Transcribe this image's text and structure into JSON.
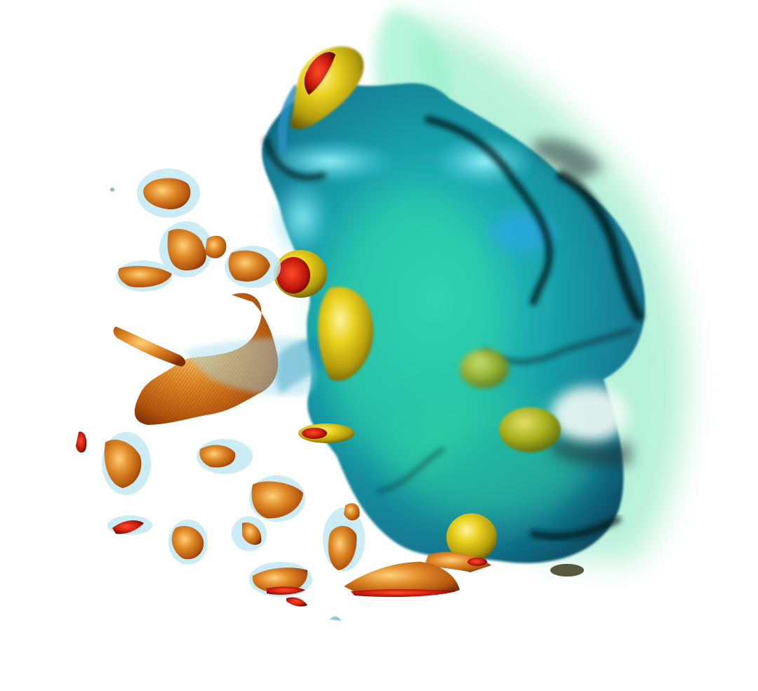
{
  "render": {
    "background": "#ffffff",
    "palette": {
      "teal_dark": "#0b5f72",
      "teal_mid": "#1b9aa8",
      "teal_light": "#4fd2d8",
      "cyan_highlight": "#7ae8f4",
      "green_haze": "#6fe0b4",
      "green_mid": "#1fae8e",
      "shadow_black": "#0a1418",
      "yellow": "#e6c21a",
      "olive": "#9ea818",
      "orange": "#d9781f",
      "red": "#c81a0a",
      "pale_blue_halo": "#bfe8f2"
    },
    "icons": [
      "volume-blob",
      "iso-surface-fragment",
      "vortex-cap"
    ]
  }
}
